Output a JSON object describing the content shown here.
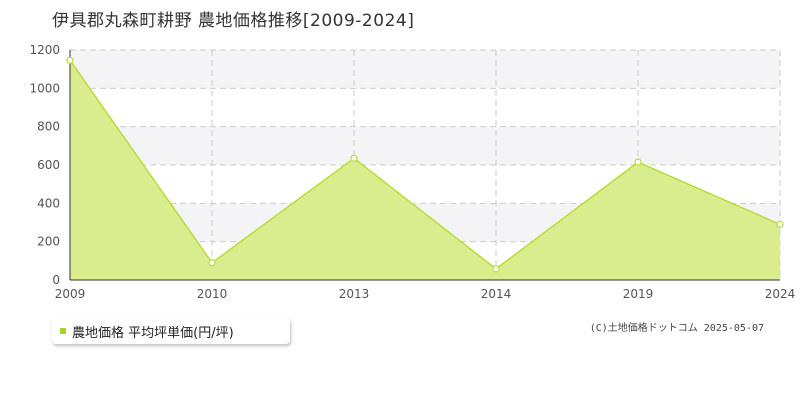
{
  "title": "伊具郡丸森町耕野 農地価格推移[2009-2024]",
  "colors": {
    "fill": "#d9ed8f",
    "line": "#b8dd3a",
    "marker_stroke": "#b8dd3a",
    "marker_fill": "#ffffff",
    "band": "#f4f4f6",
    "grid": "#cccccc",
    "axis": "#333333",
    "legend_marker": "#a8d32a"
  },
  "legend": {
    "label": "農地価格 平均坪単価(円/坪)"
  },
  "copyright": "(C)土地価格ドットコム 2025-05-07",
  "chart_data": {
    "type": "area",
    "x": [
      "2009",
      "2010",
      "2013",
      "2014",
      "2019",
      "2024"
    ],
    "values": [
      1146,
      90,
      635,
      58,
      615,
      290
    ],
    "ylim": [
      0,
      1200
    ],
    "yticks": [
      0,
      200,
      400,
      600,
      800,
      1000,
      1200
    ],
    "grid": true,
    "legend_position": "bottom-left",
    "series_name": "農地価格 平均坪単価(円/坪)"
  }
}
